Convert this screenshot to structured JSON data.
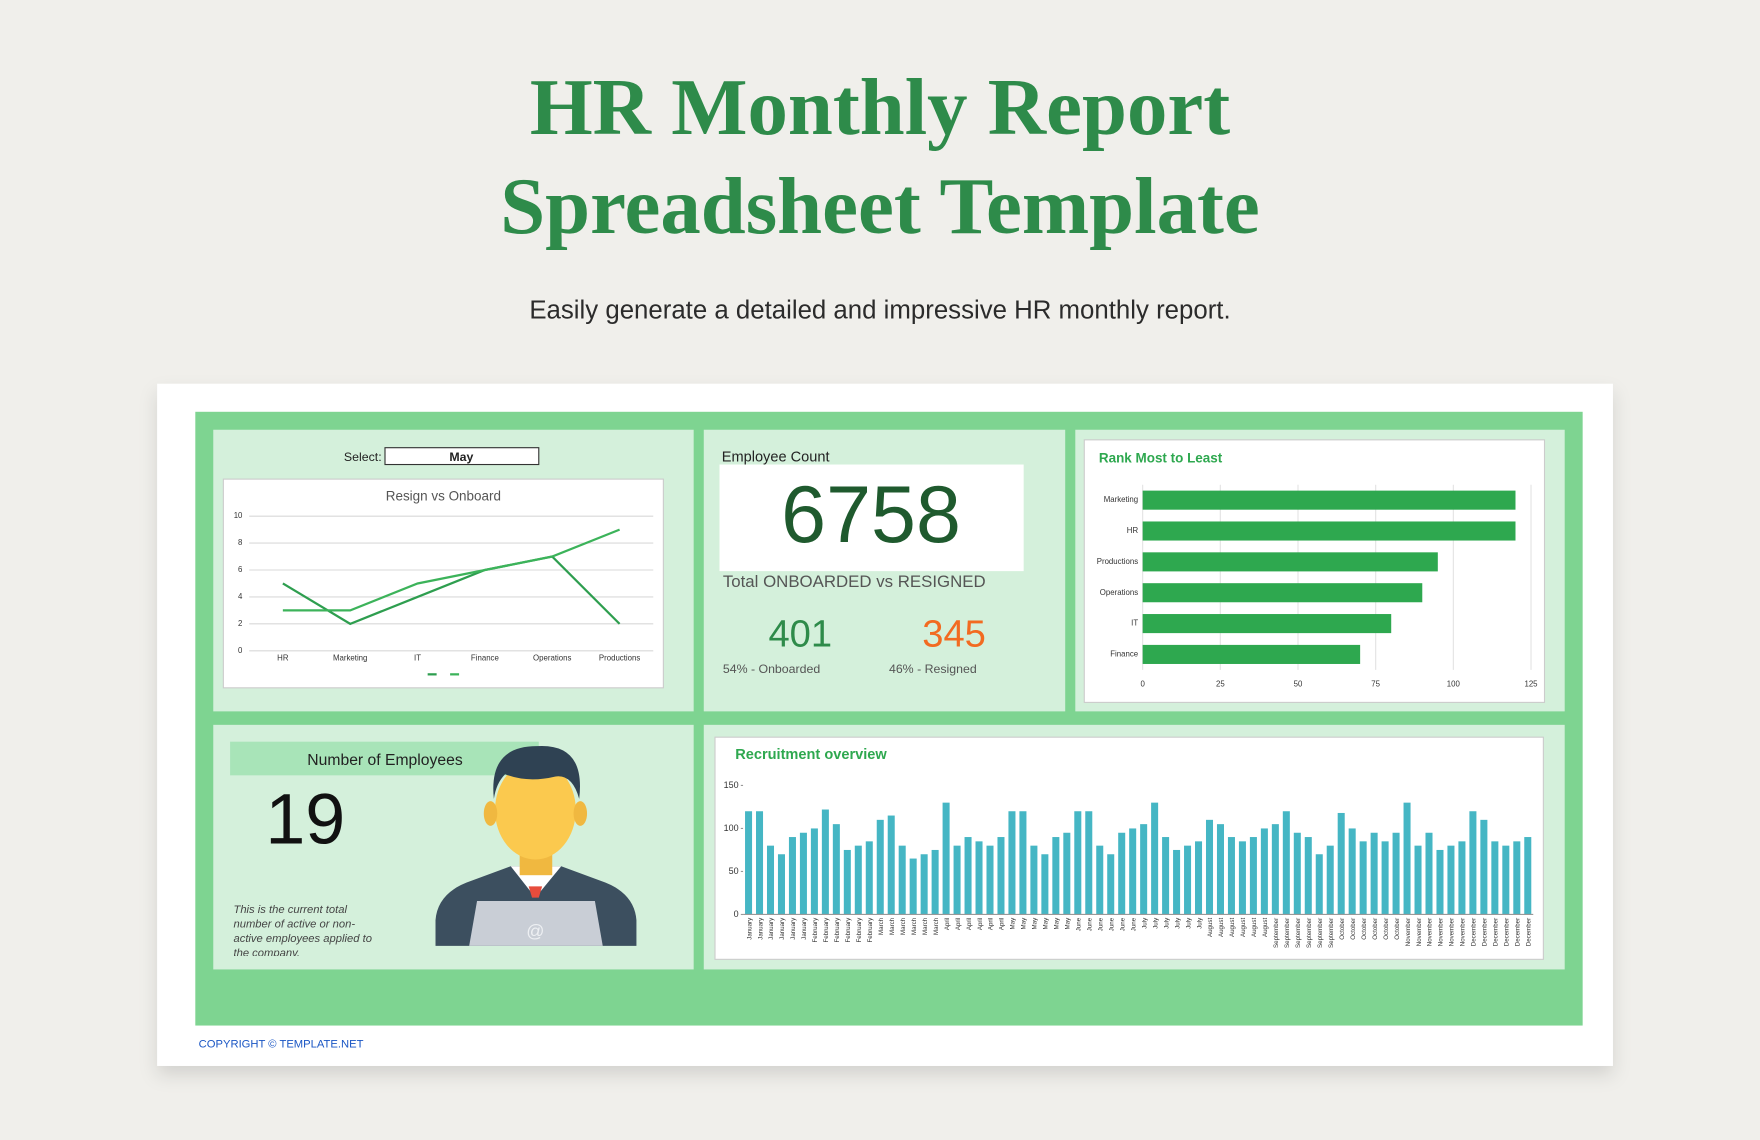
{
  "header": {
    "title": [
      "HR Monthly Report",
      "Spreadsheet Template"
    ],
    "subtitle": "Easily generate a detailed and impressive HR monthly report."
  },
  "select": {
    "label": "Select:",
    "value": "May"
  },
  "employee_count": {
    "label": "Employee Count",
    "total": 6758,
    "caption": "Total ONBOARDED vs RESIGNED",
    "onboarded": 401,
    "resigned": 345,
    "onboarded_label": "54% - Onboarded",
    "resigned_label": "46% - Resigned"
  },
  "employees": {
    "label": "Number of Employees",
    "count": 19,
    "description": [
      "This is the current total",
      "number of active or non-",
      "active employees applied to",
      "the company."
    ]
  },
  "footer": {
    "copyright": "COPYRIGHT © TEMPLATE.NET"
  },
  "chart_data": [
    {
      "type": "line",
      "title": "Resign vs Onboard",
      "categories": [
        "HR",
        "Marketing",
        "IT",
        "Finance",
        "Operations",
        "Productions"
      ],
      "series": [
        {
          "color": "#2e9e4f",
          "values": [
            5,
            2,
            4,
            6,
            7,
            2
          ]
        },
        {
          "color": "#3cb35a",
          "values": [
            3,
            3,
            5,
            6,
            7,
            9
          ]
        }
      ],
      "ylim": [
        0,
        10
      ],
      "yticks": [
        0,
        2,
        4,
        6,
        8,
        10
      ],
      "grid": true
    },
    {
      "type": "hbar",
      "title": "Rank Most to Least",
      "categories": [
        "Marketing",
        "HR",
        "Productions",
        "Operations",
        "IT",
        "Finance"
      ],
      "values": [
        120,
        120,
        95,
        90,
        80,
        70
      ],
      "color": "#2ea84f",
      "xlim": [
        0,
        125
      ],
      "xticks": [
        0,
        25,
        50,
        75,
        100,
        125
      ],
      "grid": true
    },
    {
      "type": "bar",
      "title": "Recruitment overview",
      "categories": [
        "January",
        "January",
        "January",
        "January",
        "January",
        "January",
        "February",
        "February",
        "February",
        "February",
        "February",
        "February",
        "March",
        "March",
        "March",
        "March",
        "March",
        "March",
        "April",
        "April",
        "April",
        "April",
        "April",
        "April",
        "May",
        "May",
        "May",
        "May",
        "May",
        "May",
        "June",
        "June",
        "June",
        "June",
        "June",
        "June",
        "July",
        "July",
        "July",
        "July",
        "July",
        "July",
        "August",
        "August",
        "August",
        "August",
        "August",
        "August",
        "September",
        "September",
        "September",
        "September",
        "September",
        "September",
        "October",
        "October",
        "October",
        "October",
        "October",
        "October",
        "November",
        "November",
        "November",
        "November",
        "November",
        "November",
        "December",
        "December",
        "December",
        "December",
        "December",
        "December"
      ],
      "values": [
        120,
        120,
        80,
        70,
        90,
        95,
        100,
        122,
        105,
        75,
        80,
        85,
        110,
        115,
        80,
        65,
        70,
        75,
        130,
        80,
        90,
        85,
        80,
        90,
        120,
        120,
        80,
        70,
        90,
        95,
        120,
        120,
        80,
        70,
        95,
        100,
        105,
        130,
        90,
        75,
        80,
        85,
        110,
        105,
        90,
        85,
        90,
        100,
        105,
        120,
        95,
        90,
        70,
        80,
        118,
        100,
        85,
        95,
        85,
        95,
        130,
        80,
        95,
        75,
        80,
        85,
        120,
        110,
        85,
        80,
        85,
        90
      ],
      "color": "#45b6c4",
      "ylim": [
        0,
        150
      ],
      "yticks": [
        0,
        50,
        100,
        150
      ],
      "grid": false
    }
  ]
}
